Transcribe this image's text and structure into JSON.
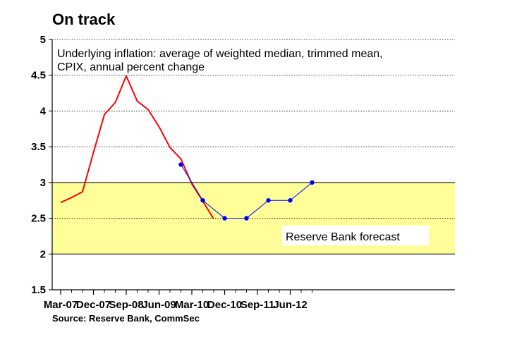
{
  "chart_data": {
    "type": "line",
    "title": "On track",
    "subtitle_lines": [
      "Underlying inflation: average of weighted median, trimmed mean,",
      "CPIX, annual percent change"
    ],
    "source": "Source: Reserve Bank, CommSec",
    "xlabel": "",
    "ylabel": "",
    "ylim": [
      1.5,
      5
    ],
    "yticks": [
      "1.5",
      "2",
      "2.5",
      "3",
      "3.5",
      "4",
      "4.5",
      "5"
    ],
    "grid": "horizontal dotted",
    "target_band": {
      "from": 2,
      "to": 3,
      "color": "#ffff99"
    },
    "x_quarters": [
      "Mar-07",
      "Jun-07",
      "Sep-07",
      "Dec-07",
      "Mar-08",
      "Jun-08",
      "Sep-08",
      "Dec-08",
      "Mar-09",
      "Jun-09",
      "Sep-09",
      "Dec-09",
      "Mar-10",
      "Jun-10",
      "Sep-10",
      "Dec-10",
      "Mar-11",
      "Jun-11",
      "Sep-11",
      "Dec-11",
      "Mar-12",
      "Jun-12",
      "Sep-12",
      "Dec-12"
    ],
    "x_tick_labels": [
      "Mar-07",
      "Dec-07",
      "Sep-08",
      "Jun-09",
      "Mar-10",
      "Dec-10",
      "Sep-11",
      "Jun-12"
    ],
    "series": [
      {
        "name": "",
        "color": "#ff0000",
        "marker": "none",
        "points": [
          {
            "x": "Mar-07",
            "y": 2.72
          },
          {
            "x": "Jun-07",
            "y": 2.79
          },
          {
            "x": "Sep-07",
            "y": 2.87
          },
          {
            "x": "Dec-07",
            "y": 3.42
          },
          {
            "x": "Mar-08",
            "y": 3.95
          },
          {
            "x": "Jun-08",
            "y": 4.12
          },
          {
            "x": "Sep-08",
            "y": 4.49
          },
          {
            "x": "Dec-08",
            "y": 4.14
          },
          {
            "x": "Mar-09",
            "y": 4.02
          },
          {
            "x": "Jun-09",
            "y": 3.78
          },
          {
            "x": "Sep-09",
            "y": 3.49
          },
          {
            "x": "Dec-09",
            "y": 3.33
          },
          {
            "x": "Mar-10",
            "y": 2.98
          },
          {
            "x": "Jun-10",
            "y": 2.74
          },
          {
            "x": "Sep-10",
            "y": 2.49
          }
        ]
      },
      {
        "name": "Reserve Bank forecast",
        "color": "#0000ff",
        "marker": "circle",
        "points": [
          {
            "x": "Dec-09",
            "y": 3.25
          },
          {
            "x": "Jun-10",
            "y": 2.75
          },
          {
            "x": "Dec-10",
            "y": 2.5
          },
          {
            "x": "Jun-11",
            "y": 2.5
          },
          {
            "x": "Dec-11",
            "y": 2.75
          },
          {
            "x": "Jun-12",
            "y": 2.75
          },
          {
            "x": "Dec-12",
            "y": 3.0
          }
        ]
      }
    ],
    "annotations": [
      {
        "text": "Reserve Bank forecast"
      }
    ]
  }
}
